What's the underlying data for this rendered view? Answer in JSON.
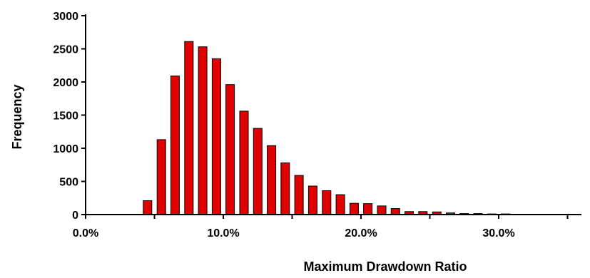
{
  "chart_data": {
    "type": "bar",
    "title": "",
    "xlabel": "Maximum Drawdown Ratio",
    "ylabel": "Frequency",
    "ylim": [
      0,
      3000
    ],
    "xlim": [
      0.0,
      0.35
    ],
    "grid": false,
    "bar_color": "#e00000",
    "x_ticks": [
      {
        "value": 0.0,
        "label": "0.0%"
      },
      {
        "value": 0.1,
        "label": "10.0%"
      },
      {
        "value": 0.2,
        "label": "20.0%"
      },
      {
        "value": 0.3,
        "label": "30.0%"
      }
    ],
    "y_ticks": [
      {
        "value": 0,
        "label": "0"
      },
      {
        "value": 500,
        "label": "500"
      },
      {
        "value": 1000,
        "label": "1000"
      },
      {
        "value": 1500,
        "label": "1500"
      },
      {
        "value": 2000,
        "label": "2000"
      },
      {
        "value": 2500,
        "label": "2500"
      },
      {
        "value": 3000,
        "label": "3000"
      }
    ],
    "bins": [
      {
        "x": 0.045,
        "value": 210
      },
      {
        "x": 0.055,
        "value": 1130
      },
      {
        "x": 0.065,
        "value": 2090
      },
      {
        "x": 0.075,
        "value": 2610
      },
      {
        "x": 0.085,
        "value": 2530
      },
      {
        "x": 0.095,
        "value": 2350
      },
      {
        "x": 0.105,
        "value": 1960
      },
      {
        "x": 0.115,
        "value": 1560
      },
      {
        "x": 0.125,
        "value": 1300
      },
      {
        "x": 0.135,
        "value": 1040
      },
      {
        "x": 0.145,
        "value": 780
      },
      {
        "x": 0.155,
        "value": 590
      },
      {
        "x": 0.165,
        "value": 430
      },
      {
        "x": 0.175,
        "value": 360
      },
      {
        "x": 0.185,
        "value": 300
      },
      {
        "x": 0.195,
        "value": 170
      },
      {
        "x": 0.205,
        "value": 165
      },
      {
        "x": 0.215,
        "value": 130
      },
      {
        "x": 0.225,
        "value": 90
      },
      {
        "x": 0.235,
        "value": 45
      },
      {
        "x": 0.245,
        "value": 45
      },
      {
        "x": 0.255,
        "value": 40
      },
      {
        "x": 0.265,
        "value": 25
      },
      {
        "x": 0.275,
        "value": 15
      },
      {
        "x": 0.285,
        "value": 15
      },
      {
        "x": 0.295,
        "value": 10
      },
      {
        "x": 0.305,
        "value": 10
      }
    ]
  }
}
